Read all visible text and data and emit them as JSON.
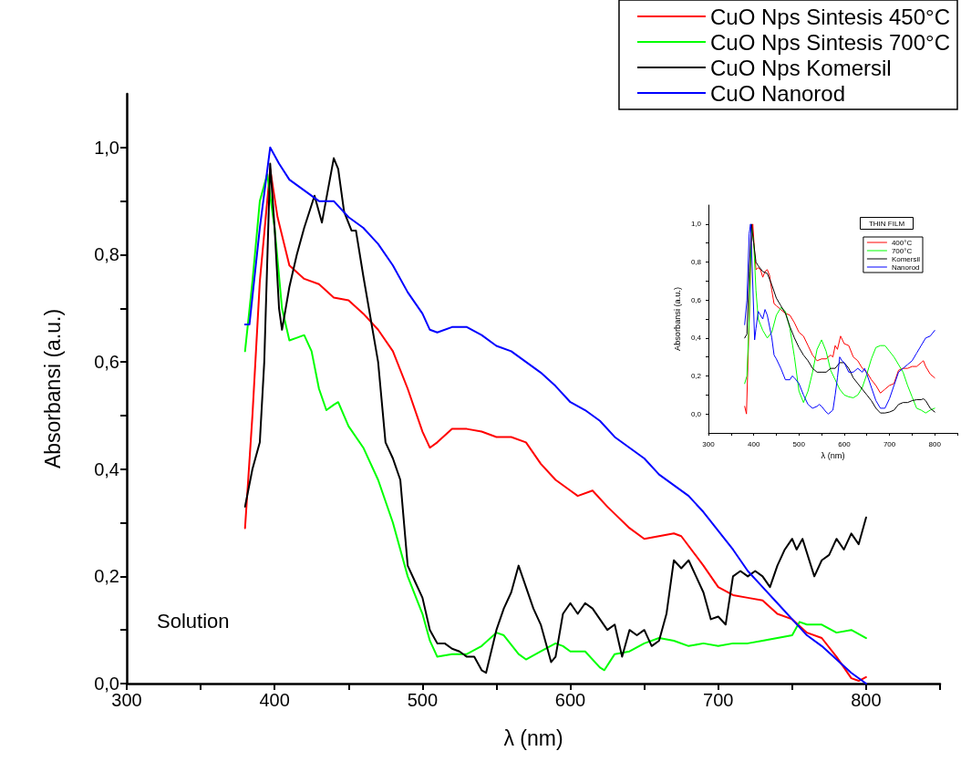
{
  "chart_data": [
    {
      "type": "line",
      "xlabel": "λ (nm)",
      "ylabel": "Absorbansi (a.u.)",
      "xlim": [
        300,
        850
      ],
      "ylim": [
        0,
        1.1
      ],
      "xticks": [
        300,
        {
          "value": 350,
          "label": null
        },
        400,
        {
          "value": 450,
          "label": null
        },
        500,
        {
          "value": 550,
          "label": null
        },
        600,
        {
          "value": 650,
          "label": null
        },
        700,
        {
          "value": 750,
          "label": null
        },
        800,
        {
          "value": 850,
          "label": null
        }
      ],
      "yticks": [
        {
          "value": 0,
          "label": "0,0"
        },
        {
          "value": 0.1,
          "label": null
        },
        {
          "value": 0.2,
          "label": "0,2"
        },
        {
          "value": 0.3,
          "label": null
        },
        {
          "value": 0.4,
          "label": "0,4"
        },
        {
          "value": 0.5,
          "label": null
        },
        {
          "value": 0.6,
          "label": "0,6"
        },
        {
          "value": 0.7,
          "label": null
        },
        {
          "value": 0.8,
          "label": "0,8"
        },
        {
          "value": 0.9,
          "label": null
        },
        {
          "value": 1.0,
          "label": "1,0"
        }
      ],
      "grid": false,
      "legend": "top right",
      "marker": "none",
      "line_style": "solid",
      "annotations": [
        "Solution"
      ],
      "series": [
        {
          "name": "CuO Nps Sintesis 450°C",
          "color": "#ff0000",
          "x": [
            380,
            385,
            390,
            397,
            402,
            410,
            420,
            430,
            440,
            450,
            460,
            470,
            480,
            490,
            500,
            505,
            510,
            520,
            530,
            540,
            550,
            560,
            570,
            580,
            590,
            600,
            605,
            615,
            625,
            640,
            650,
            660,
            670,
            675,
            690,
            700,
            710,
            720,
            730,
            740,
            750,
            760,
            770,
            780,
            790,
            795,
            800
          ],
          "values": [
            0.29,
            0.5,
            0.75,
            0.96,
            0.87,
            0.78,
            0.755,
            0.745,
            0.72,
            0.715,
            0.69,
            0.66,
            0.62,
            0.55,
            0.47,
            0.44,
            0.45,
            0.475,
            0.475,
            0.47,
            0.46,
            0.46,
            0.45,
            0.41,
            0.38,
            0.36,
            0.35,
            0.36,
            0.33,
            0.29,
            0.27,
            0.275,
            0.28,
            0.275,
            0.22,
            0.18,
            0.165,
            0.16,
            0.155,
            0.13,
            0.12,
            0.095,
            0.085,
            0.05,
            0.01,
            0.005,
            0.012
          ]
        },
        {
          "name": "CuO Nps Sintesis 700°C",
          "color": "#00ff00",
          "x": [
            380,
            385,
            390,
            395,
            400,
            405,
            410,
            415,
            420,
            425,
            430,
            435,
            440,
            443,
            450,
            460,
            470,
            480,
            490,
            500,
            505,
            510,
            520,
            530,
            540,
            550,
            555,
            565,
            570,
            580,
            590,
            595,
            600,
            610,
            620,
            623,
            630,
            640,
            650,
            660,
            670,
            680,
            690,
            700,
            710,
            720,
            730,
            740,
            750,
            755,
            760,
            770,
            780,
            790,
            800
          ],
          "values": [
            0.62,
            0.75,
            0.9,
            0.95,
            0.85,
            0.7,
            0.64,
            0.645,
            0.65,
            0.62,
            0.55,
            0.51,
            0.52,
            0.525,
            0.48,
            0.44,
            0.38,
            0.3,
            0.2,
            0.13,
            0.08,
            0.05,
            0.055,
            0.055,
            0.07,
            0.095,
            0.09,
            0.055,
            0.045,
            0.06,
            0.075,
            0.07,
            0.06,
            0.06,
            0.03,
            0.025,
            0.055,
            0.06,
            0.075,
            0.085,
            0.08,
            0.07,
            0.075,
            0.07,
            0.075,
            0.075,
            0.08,
            0.085,
            0.09,
            0.115,
            0.11,
            0.11,
            0.095,
            0.1,
            0.085
          ]
        },
        {
          "name": "CuO Nps Komersil",
          "color": "#000000",
          "x": [
            380,
            385,
            390,
            393,
            397,
            400,
            403,
            405,
            410,
            415,
            420,
            427,
            432,
            440,
            443,
            447,
            452,
            455,
            460,
            470,
            475,
            480,
            485,
            490,
            495,
            500,
            505,
            510,
            515,
            520,
            525,
            530,
            535,
            540,
            543,
            550,
            555,
            560,
            565,
            570,
            575,
            580,
            587,
            590,
            595,
            600,
            605,
            610,
            615,
            620,
            625,
            630,
            635,
            640,
            645,
            650,
            655,
            660,
            665,
            670,
            675,
            680,
            685,
            690,
            695,
            700,
            705,
            710,
            715,
            720,
            725,
            730,
            735,
            740,
            745,
            750,
            753,
            757,
            765,
            770,
            775,
            780,
            785,
            790,
            795,
            800
          ],
          "values": [
            0.33,
            0.4,
            0.45,
            0.6,
            0.97,
            0.85,
            0.7,
            0.66,
            0.74,
            0.8,
            0.85,
            0.91,
            0.86,
            0.98,
            0.96,
            0.88,
            0.845,
            0.845,
            0.76,
            0.6,
            0.45,
            0.42,
            0.38,
            0.22,
            0.19,
            0.16,
            0.1,
            0.075,
            0.075,
            0.065,
            0.06,
            0.05,
            0.05,
            0.025,
            0.02,
            0.1,
            0.14,
            0.17,
            0.22,
            0.18,
            0.14,
            0.11,
            0.04,
            0.05,
            0.13,
            0.15,
            0.13,
            0.15,
            0.14,
            0.12,
            0.1,
            0.11,
            0.05,
            0.1,
            0.09,
            0.1,
            0.07,
            0.08,
            0.13,
            0.23,
            0.215,
            0.23,
            0.2,
            0.17,
            0.12,
            0.125,
            0.11,
            0.2,
            0.21,
            0.2,
            0.21,
            0.2,
            0.18,
            0.22,
            0.25,
            0.27,
            0.25,
            0.27,
            0.2,
            0.23,
            0.24,
            0.27,
            0.25,
            0.28,
            0.26,
            0.31
          ]
        },
        {
          "name": "CuO Nanorod",
          "color": "#0000ff",
          "x": [
            380,
            383,
            390,
            397,
            403,
            410,
            420,
            430,
            440,
            450,
            460,
            470,
            480,
            490,
            500,
            505,
            510,
            520,
            530,
            540,
            550,
            560,
            570,
            580,
            590,
            600,
            610,
            620,
            630,
            640,
            650,
            660,
            670,
            680,
            690,
            700,
            710,
            720,
            730,
            740,
            750,
            760,
            770,
            780,
            790,
            800
          ],
          "values": [
            0.67,
            0.67,
            0.85,
            1.0,
            0.97,
            0.94,
            0.92,
            0.9,
            0.9,
            0.87,
            0.85,
            0.82,
            0.78,
            0.73,
            0.69,
            0.66,
            0.655,
            0.665,
            0.665,
            0.65,
            0.63,
            0.62,
            0.6,
            0.58,
            0.555,
            0.525,
            0.51,
            0.49,
            0.46,
            0.44,
            0.42,
            0.39,
            0.37,
            0.35,
            0.32,
            0.285,
            0.25,
            0.21,
            0.18,
            0.15,
            0.12,
            0.09,
            0.07,
            0.045,
            0.02,
            0.0
          ]
        }
      ]
    },
    {
      "type": "line",
      "xlabel": "λ (nm)",
      "ylabel": "Absorbansi (a.u.)",
      "xlim": [
        300,
        850
      ],
      "ylim": [
        -0.1,
        1.1
      ],
      "xticks": [
        300,
        {
          "value": 350,
          "label": null
        },
        400,
        {
          "value": 450,
          "label": null
        },
        500,
        {
          "value": 550,
          "label": null
        },
        600,
        {
          "value": 650,
          "label": null
        },
        700,
        {
          "value": 750,
          "label": null
        },
        800,
        {
          "value": 850,
          "label": null
        }
      ],
      "yticks": [
        {
          "value": 0,
          "label": "0,0"
        },
        {
          "value": 0.1,
          "label": null
        },
        {
          "value": 0.2,
          "label": "0,2"
        },
        {
          "value": 0.3,
          "label": null
        },
        {
          "value": 0.4,
          "label": "0,4"
        },
        {
          "value": 0.5,
          "label": null
        },
        {
          "value": 0.6,
          "label": "0,6"
        },
        {
          "value": 0.7,
          "label": null
        },
        {
          "value": 0.8,
          "label": "0,8"
        },
        {
          "value": 0.9,
          "label": null
        },
        {
          "value": 1.0,
          "label": "1,0"
        }
      ],
      "grid": false,
      "legend": "top right",
      "legend_title": "THIN FILM",
      "marker": "none",
      "line_style": "solid",
      "series": [
        {
          "name": "400°C",
          "color": "#ff0000",
          "x": [
            380,
            384,
            390,
            395,
            398,
            402,
            405,
            410,
            415,
            420,
            425,
            430,
            435,
            440,
            445,
            450,
            460,
            470,
            480,
            490,
            500,
            510,
            520,
            530,
            540,
            550,
            560,
            570,
            575,
            580,
            585,
            592,
            600,
            610,
            620,
            630,
            640,
            650,
            660,
            670,
            680,
            690,
            700,
            710,
            720,
            730,
            740,
            750,
            760,
            770,
            775,
            780,
            790,
            800
          ],
          "values": [
            0.04,
            0.0,
            0.5,
            0.9,
            1.0,
            0.85,
            0.76,
            0.77,
            0.76,
            0.72,
            0.75,
            0.76,
            0.73,
            0.65,
            0.58,
            0.57,
            0.55,
            0.53,
            0.52,
            0.48,
            0.43,
            0.41,
            0.36,
            0.31,
            0.28,
            0.29,
            0.29,
            0.31,
            0.3,
            0.36,
            0.34,
            0.41,
            0.37,
            0.36,
            0.3,
            0.28,
            0.24,
            0.22,
            0.18,
            0.15,
            0.11,
            0.13,
            0.15,
            0.16,
            0.23,
            0.24,
            0.24,
            0.25,
            0.25,
            0.27,
            0.28,
            0.25,
            0.21,
            0.19
          ]
        },
        {
          "name": "700°C",
          "color": "#00ff00",
          "x": [
            380,
            385,
            390,
            395,
            400,
            405,
            410,
            420,
            430,
            440,
            450,
            460,
            470,
            480,
            490,
            500,
            510,
            520,
            530,
            540,
            550,
            560,
            570,
            580,
            590,
            600,
            610,
            620,
            630,
            640,
            650,
            660,
            670,
            680,
            690,
            700,
            710,
            720,
            730,
            740,
            750,
            760,
            770,
            780,
            790,
            800
          ],
          "values": [
            0.16,
            0.2,
            0.5,
            0.99,
            0.9,
            0.65,
            0.5,
            0.44,
            0.4,
            0.43,
            0.52,
            0.56,
            0.54,
            0.45,
            0.3,
            0.12,
            0.06,
            0.12,
            0.22,
            0.34,
            0.39,
            0.33,
            0.23,
            0.18,
            0.13,
            0.1,
            0.09,
            0.085,
            0.1,
            0.14,
            0.21,
            0.29,
            0.35,
            0.36,
            0.36,
            0.33,
            0.3,
            0.26,
            0.22,
            0.15,
            0.09,
            0.03,
            0.02,
            0.005,
            0.02,
            0.03
          ]
        },
        {
          "name": "Komersil",
          "color": "#000000",
          "x": [
            380,
            385,
            390,
            395,
            400,
            405,
            410,
            420,
            430,
            440,
            450,
            460,
            470,
            480,
            490,
            500,
            510,
            520,
            530,
            540,
            550,
            560,
            570,
            580,
            590,
            600,
            610,
            620,
            630,
            640,
            650,
            660,
            670,
            680,
            690,
            700,
            710,
            720,
            730,
            740,
            750,
            760,
            770,
            775,
            780,
            790,
            800
          ],
          "values": [
            0.4,
            0.42,
            0.75,
            1.0,
            0.9,
            0.8,
            0.78,
            0.75,
            0.74,
            0.68,
            0.61,
            0.57,
            0.53,
            0.46,
            0.4,
            0.35,
            0.31,
            0.28,
            0.24,
            0.22,
            0.22,
            0.22,
            0.24,
            0.24,
            0.27,
            0.27,
            0.24,
            0.19,
            0.16,
            0.13,
            0.1,
            0.07,
            0.03,
            0.005,
            0.005,
            0.01,
            0.02,
            0.05,
            0.06,
            0.06,
            0.07,
            0.075,
            0.075,
            0.08,
            0.07,
            0.03,
            0.01
          ]
        },
        {
          "name": "Nanorod",
          "color": "#0000ff",
          "x": [
            380,
            385,
            390,
            393,
            397,
            402,
            405,
            410,
            415,
            420,
            425,
            430,
            440,
            445,
            450,
            460,
            470,
            480,
            485,
            490,
            500,
            510,
            520,
            530,
            540,
            545,
            550,
            560,
            565,
            575,
            580,
            585,
            590,
            595,
            600,
            610,
            620,
            630,
            640,
            645,
            650,
            660,
            670,
            680,
            690,
            700,
            710,
            720,
            730,
            740,
            750,
            760,
            770,
            780,
            790,
            800
          ],
          "values": [
            0.47,
            0.6,
            0.95,
            1.0,
            0.75,
            0.39,
            0.45,
            0.54,
            0.52,
            0.5,
            0.55,
            0.52,
            0.4,
            0.31,
            0.29,
            0.24,
            0.18,
            0.18,
            0.2,
            0.19,
            0.16,
            0.1,
            0.05,
            0.03,
            0.04,
            0.05,
            0.04,
            0.01,
            0.0,
            0.02,
            0.1,
            0.19,
            0.3,
            0.28,
            0.27,
            0.22,
            0.22,
            0.24,
            0.22,
            0.24,
            0.21,
            0.14,
            0.07,
            0.03,
            0.03,
            0.08,
            0.15,
            0.22,
            0.24,
            0.26,
            0.28,
            0.32,
            0.36,
            0.4,
            0.41,
            0.44
          ]
        }
      ]
    }
  ]
}
